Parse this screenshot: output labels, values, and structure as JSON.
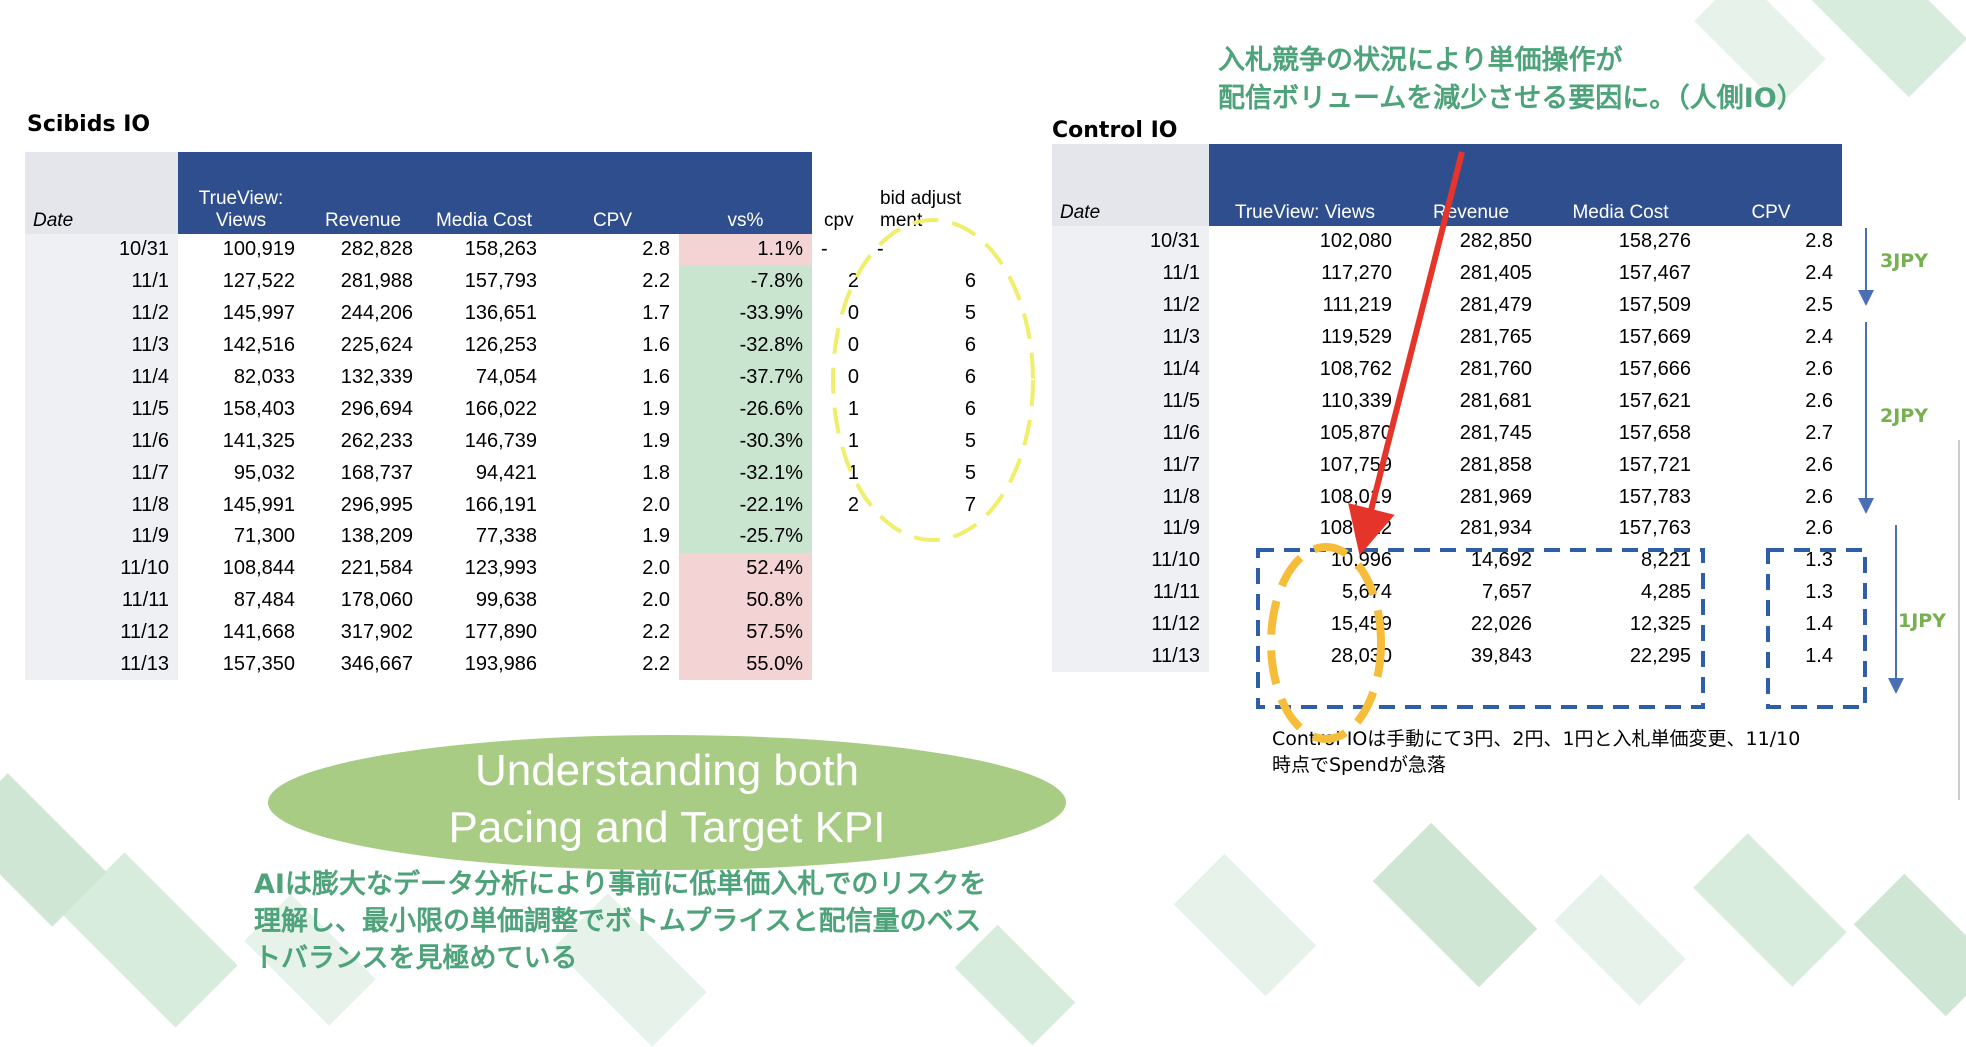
{
  "scibids": {
    "title": "Scibids IO",
    "headers": [
      "Date",
      "TrueView: Views",
      "Revenue",
      "Media Cost",
      "CPV",
      "vs%",
      "cpv",
      "bid adjustment"
    ],
    "rows": [
      {
        "date": "10/31",
        "views": "100,919",
        "revenue": "282,828",
        "cost": "158,263",
        "cpv": "2.8",
        "vs": "1.1%",
        "vs_sign": "pos",
        "cpv_adj": "-",
        "bid_adj": "-"
      },
      {
        "date": "11/1",
        "views": "127,522",
        "revenue": "281,988",
        "cost": "157,793",
        "cpv": "2.2",
        "vs": "-7.8%",
        "vs_sign": "neg",
        "cpv_adj": "2",
        "bid_adj": "6"
      },
      {
        "date": "11/2",
        "views": "145,997",
        "revenue": "244,206",
        "cost": "136,651",
        "cpv": "1.7",
        "vs": "-33.9%",
        "vs_sign": "neg",
        "cpv_adj": "0",
        "bid_adj": "5"
      },
      {
        "date": "11/3",
        "views": "142,516",
        "revenue": "225,624",
        "cost": "126,253",
        "cpv": "1.6",
        "vs": "-32.8%",
        "vs_sign": "neg",
        "cpv_adj": "0",
        "bid_adj": "6"
      },
      {
        "date": "11/4",
        "views": "82,033",
        "revenue": "132,339",
        "cost": "74,054",
        "cpv": "1.6",
        "vs": "-37.7%",
        "vs_sign": "neg",
        "cpv_adj": "0",
        "bid_adj": "6"
      },
      {
        "date": "11/5",
        "views": "158,403",
        "revenue": "296,694",
        "cost": "166,022",
        "cpv": "1.9",
        "vs": "-26.6%",
        "vs_sign": "neg",
        "cpv_adj": "1",
        "bid_adj": "6"
      },
      {
        "date": "11/6",
        "views": "141,325",
        "revenue": "262,233",
        "cost": "146,739",
        "cpv": "1.9",
        "vs": "-30.3%",
        "vs_sign": "neg",
        "cpv_adj": "1",
        "bid_adj": "5"
      },
      {
        "date": "11/7",
        "views": "95,032",
        "revenue": "168,737",
        "cost": "94,421",
        "cpv": "1.8",
        "vs": "-32.1%",
        "vs_sign": "neg",
        "cpv_adj": "1",
        "bid_adj": "5"
      },
      {
        "date": "11/8",
        "views": "145,991",
        "revenue": "296,995",
        "cost": "166,191",
        "cpv": "2.0",
        "vs": "-22.1%",
        "vs_sign": "neg",
        "cpv_adj": "2",
        "bid_adj": "7"
      },
      {
        "date": "11/9",
        "views": "71,300",
        "revenue": "138,209",
        "cost": "77,338",
        "cpv": "1.9",
        "vs": "-25.7%",
        "vs_sign": "neg",
        "cpv_adj": "",
        "bid_adj": ""
      },
      {
        "date": "11/10",
        "views": "108,844",
        "revenue": "221,584",
        "cost": "123,993",
        "cpv": "2.0",
        "vs": "52.4%",
        "vs_sign": "pos",
        "cpv_adj": "",
        "bid_adj": ""
      },
      {
        "date": "11/11",
        "views": "87,484",
        "revenue": "178,060",
        "cost": "99,638",
        "cpv": "2.0",
        "vs": "50.8%",
        "vs_sign": "pos",
        "cpv_adj": "",
        "bid_adj": ""
      },
      {
        "date": "11/12",
        "views": "141,668",
        "revenue": "317,902",
        "cost": "177,890",
        "cpv": "2.2",
        "vs": "57.5%",
        "vs_sign": "pos",
        "cpv_adj": "",
        "bid_adj": ""
      },
      {
        "date": "11/13",
        "views": "157,350",
        "revenue": "346,667",
        "cost": "193,986",
        "cpv": "2.2",
        "vs": "55.0%",
        "vs_sign": "pos",
        "cpv_adj": "",
        "bid_adj": ""
      }
    ]
  },
  "control": {
    "title": "Control IO",
    "headers": [
      "Date",
      "TrueView: Views",
      "Revenue",
      "Media Cost",
      "CPV"
    ],
    "rows": [
      {
        "date": "10/31",
        "views": "102,080",
        "revenue": "282,850",
        "cost": "158,276",
        "cpv": "2.8"
      },
      {
        "date": "11/1",
        "views": "117,270",
        "revenue": "281,405",
        "cost": "157,467",
        "cpv": "2.4"
      },
      {
        "date": "11/2",
        "views": "111,219",
        "revenue": "281,479",
        "cost": "157,509",
        "cpv": "2.5"
      },
      {
        "date": "11/3",
        "views": "119,529",
        "revenue": "281,765",
        "cost": "157,669",
        "cpv": "2.4"
      },
      {
        "date": "11/4",
        "views": "108,762",
        "revenue": "281,760",
        "cost": "157,666",
        "cpv": "2.6"
      },
      {
        "date": "11/5",
        "views": "110,339",
        "revenue": "281,681",
        "cost": "157,621",
        "cpv": "2.6"
      },
      {
        "date": "11/6",
        "views": "105,870",
        "revenue": "281,745",
        "cost": "157,658",
        "cpv": "2.7"
      },
      {
        "date": "11/7",
        "views": "107,759",
        "revenue": "281,858",
        "cost": "157,721",
        "cpv": "2.6"
      },
      {
        "date": "11/8",
        "views": "108,019",
        "revenue": "281,969",
        "cost": "157,783",
        "cpv": "2.6"
      },
      {
        "date": "11/9",
        "views": "108,122",
        "revenue": "281,934",
        "cost": "157,763",
        "cpv": "2.6"
      },
      {
        "date": "11/10",
        "views": "10,996",
        "revenue": "14,692",
        "cost": "8,221",
        "cpv": "1.3"
      },
      {
        "date": "11/11",
        "views": "5,674",
        "revenue": "7,657",
        "cost": "4,285",
        "cpv": "1.3"
      },
      {
        "date": "11/12",
        "views": "15,459",
        "revenue": "22,026",
        "cost": "12,325",
        "cpv": "1.4"
      },
      {
        "date": "11/13",
        "views": "28,030",
        "revenue": "39,843",
        "cost": "22,295",
        "cpv": "1.4"
      }
    ]
  },
  "annotation_top": [
    "入札競争の状況により単価操作が",
    "配信ボリュームを減少させる要因に。（人側IO）"
  ],
  "jpy_labels": [
    "3JPY",
    "2JPY",
    "1JPY"
  ],
  "control_note": [
    "Control IOは手動にて3円、2円、1円と入札単価変更、11/10",
    "時点でSpendが急落"
  ],
  "pill_text": [
    "Understanding both",
    "Pacing and Target KPI"
  ],
  "bottom_text": [
    "AIは膨大なデータ分析により事前に低単価入札でのリスクを",
    "理解し、最小限の単価調整でボトムプライスと配信量のベス",
    "トバランスを見極めている"
  ],
  "colors": {
    "header_blue": "#2f4e8d",
    "positive_cell": "#f3d3d3",
    "negative_cell": "#c9e5d0",
    "accent_green": "#4ea37a",
    "jpy_green": "#76b04f",
    "arrow_red": "#e5352b",
    "dashed_yellow": "#f0ee6a",
    "dashed_orange": "#f5bd3a",
    "dashed_blue": "#2f5ea8"
  }
}
